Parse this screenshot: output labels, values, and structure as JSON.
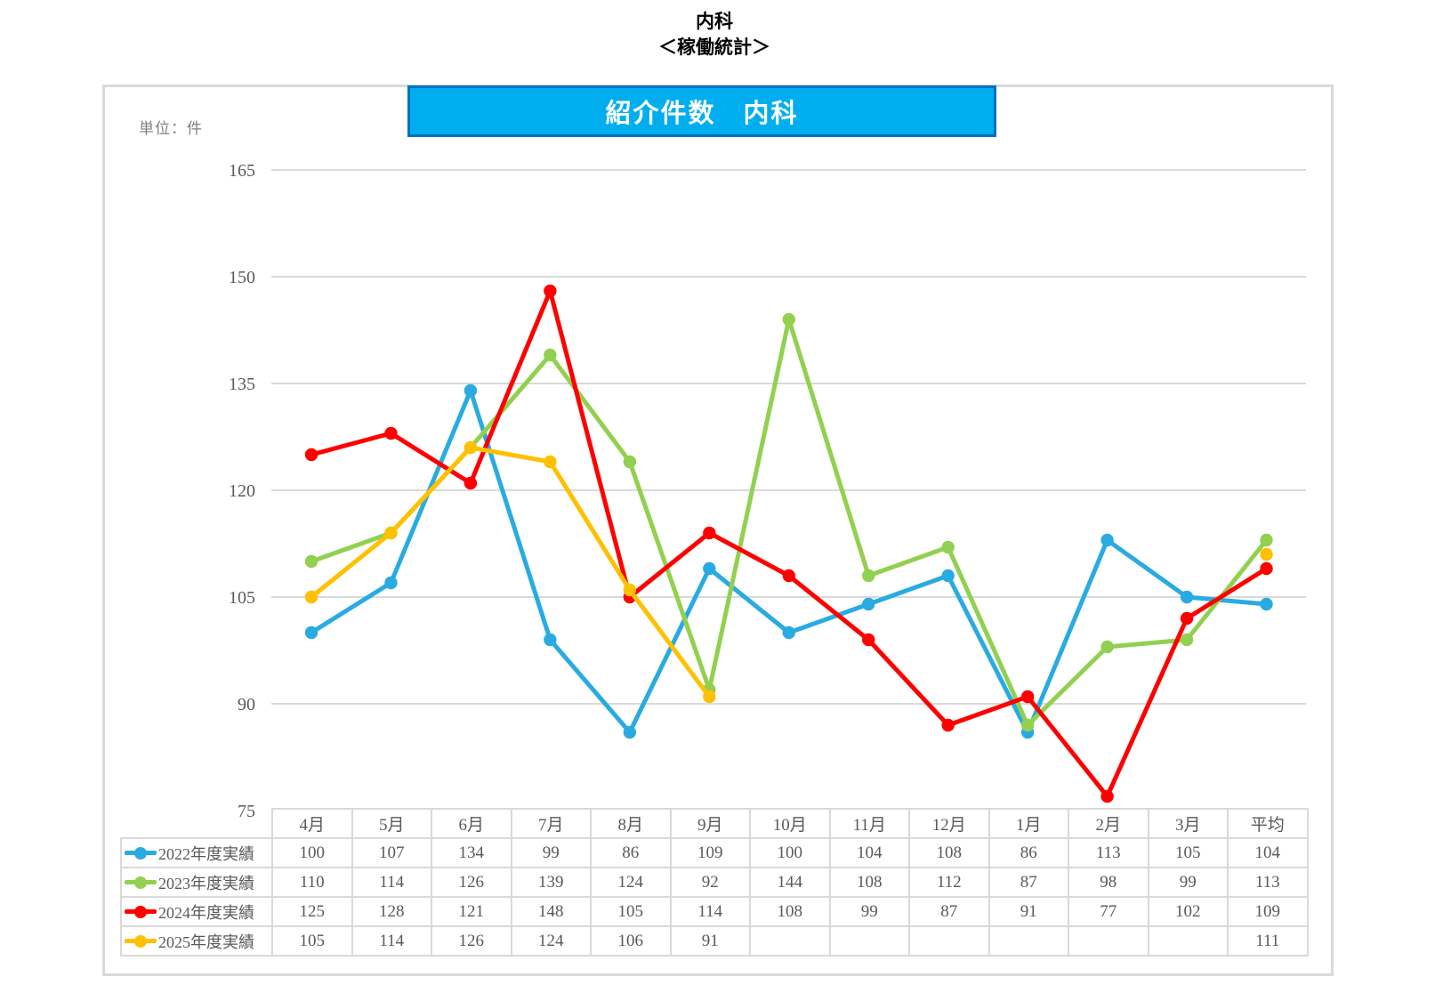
{
  "page": {
    "title_line1": "内科",
    "title_line2": "＜稼働統計＞",
    "unit_label": "単位：件",
    "banner_title": "紹介件数　内科"
  },
  "colors": {
    "banner_fill": "#00AEEF",
    "banner_border": "#0070C0",
    "grid": "#D9D9D9",
    "axis_text": "#595959",
    "unit_text": "#7F7F7F"
  },
  "chart_data": {
    "type": "line",
    "title": "紹介件数　内科",
    "unit": "件",
    "categories": [
      "4月",
      "5月",
      "6月",
      "7月",
      "8月",
      "9月",
      "10月",
      "11月",
      "12月",
      "1月",
      "2月",
      "3月",
      "平均"
    ],
    "ylim": [
      75,
      165
    ],
    "yticks": [
      75,
      90,
      105,
      120,
      135,
      150,
      165
    ],
    "grid": true,
    "legend_position": "table-left",
    "series": [
      {
        "name": "2022年度実績",
        "color": "#29ABE2",
        "values": [
          100,
          107,
          134,
          99,
          86,
          109,
          100,
          104,
          108,
          86,
          113,
          105,
          104
        ]
      },
      {
        "name": "2023年度実績",
        "color": "#92D050",
        "values": [
          110,
          114,
          126,
          139,
          124,
          92,
          144,
          108,
          112,
          87,
          98,
          99,
          113
        ]
      },
      {
        "name": "2024年度実績",
        "color": "#FF0000",
        "values": [
          125,
          128,
          121,
          148,
          105,
          114,
          108,
          99,
          87,
          91,
          77,
          102,
          109
        ]
      },
      {
        "name": "2025年度実績",
        "color": "#FFC000",
        "values": [
          105,
          114,
          126,
          124,
          106,
          91,
          null,
          null,
          null,
          null,
          null,
          null,
          111
        ]
      }
    ]
  }
}
